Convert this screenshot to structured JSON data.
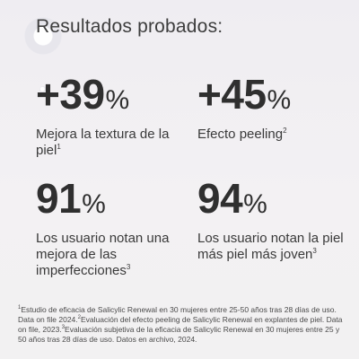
{
  "headline": "Resultados probados:",
  "stats": [
    {
      "value": "+39",
      "unit": "%",
      "description": "Mejora la textura de la piel",
      "ref": "1"
    },
    {
      "value": "+45",
      "unit": "%",
      "description": "Efecto peeling",
      "ref": "2"
    },
    {
      "value": "91",
      "unit": "%",
      "description": "Los usuario notan una mejora de las imperfecciones",
      "ref": "3"
    },
    {
      "value": "94",
      "unit": "%",
      "description": "Los usuario notan la piel más piel más joven",
      "ref": "3"
    }
  ],
  "footnotes": [
    {
      "ref": "1",
      "text": "Estudio de eficacia de Salicylic Renewal en 30 mujeres entre 25-50 años tras 28 días de uso. Data on file 2024."
    },
    {
      "ref": "2",
      "text": "Evaluación del efecto peeling de Salicylic Renewal en explantes de piel. Data on file, 2023."
    },
    {
      "ref": "3",
      "text": "Evaluación subjetiva de la eficacia de Salicylic Renewal en 30 mujeres entre 25 y 50 años tras 28 días de uso. Datos en archivo, 2024."
    }
  ]
}
